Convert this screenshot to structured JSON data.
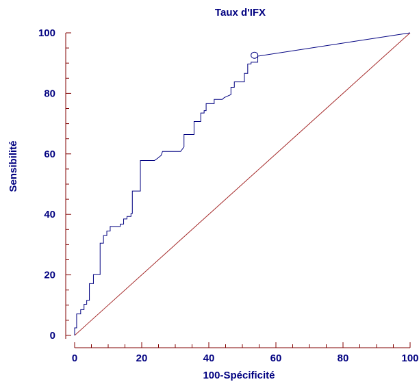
{
  "chart_data": {
    "type": "line",
    "title": "Taux d'IFX",
    "xlabel": "100-Spécificité",
    "ylabel": "Sensibilité",
    "xlim": [
      0,
      100
    ],
    "ylim": [
      0,
      100
    ],
    "x_ticks": [
      0,
      20,
      40,
      60,
      80,
      100
    ],
    "y_ticks": [
      0,
      20,
      40,
      60,
      80,
      100
    ],
    "grid": false,
    "colors": {
      "roc": "#000080",
      "reference": "#a52a2a",
      "axis": "#800000",
      "text": "#000080"
    },
    "series": [
      {
        "values": [
          [
            0,
            0
          ],
          [
            0,
            2.5
          ],
          [
            0.6,
            2.5
          ],
          [
            0.6,
            7.1
          ],
          [
            1.8,
            7.1
          ],
          [
            1.8,
            8.5
          ],
          [
            2.8,
            8.5
          ],
          [
            2.8,
            10.3
          ],
          [
            3.6,
            10.3
          ],
          [
            3.6,
            11.6
          ],
          [
            4.4,
            11.6
          ],
          [
            4.4,
            17.1
          ],
          [
            5.6,
            17.1
          ],
          [
            5.6,
            20.1
          ],
          [
            7.6,
            20.1
          ],
          [
            7.6,
            30.5
          ],
          [
            8.6,
            30.5
          ],
          [
            8.6,
            33.0
          ],
          [
            9.6,
            33.0
          ],
          [
            9.6,
            34.5
          ],
          [
            10.6,
            34.5
          ],
          [
            10.6,
            36.0
          ],
          [
            13.6,
            36.0
          ],
          [
            13.6,
            36.8
          ],
          [
            14.6,
            36.8
          ],
          [
            14.6,
            38.5
          ],
          [
            15.6,
            38.5
          ],
          [
            15.6,
            39.3
          ],
          [
            16.8,
            39.3
          ],
          [
            16.8,
            40.3
          ],
          [
            17.2,
            40.3
          ],
          [
            17.2,
            47.7
          ],
          [
            19.6,
            47.7
          ],
          [
            19.6,
            57.8
          ],
          [
            23.8,
            57.8
          ],
          [
            24.8,
            58.6
          ],
          [
            25.8,
            59.5
          ],
          [
            26.2,
            60.8
          ],
          [
            31.6,
            60.8
          ],
          [
            32.6,
            62.3
          ],
          [
            32.6,
            66.4
          ],
          [
            35.6,
            66.4
          ],
          [
            35.6,
            70.7
          ],
          [
            37.6,
            70.7
          ],
          [
            37.6,
            73.5
          ],
          [
            38.6,
            73.5
          ],
          [
            38.6,
            74.3
          ],
          [
            39.2,
            74.3
          ],
          [
            39.2,
            76.6
          ],
          [
            41.6,
            76.6
          ],
          [
            41.6,
            78.0
          ],
          [
            44.0,
            78.0
          ],
          [
            44.6,
            78.6
          ],
          [
            46.6,
            79.6
          ],
          [
            46.6,
            82.0
          ],
          [
            47.6,
            82.0
          ],
          [
            47.6,
            83.8
          ],
          [
            50.6,
            83.8
          ],
          [
            50.6,
            86.6
          ],
          [
            51.6,
            86.6
          ],
          [
            51.6,
            89.7
          ],
          [
            52.6,
            89.7
          ],
          [
            52.6,
            90.3
          ],
          [
            54.6,
            90.3
          ],
          [
            54.6,
            92.3
          ],
          [
            100,
            100
          ]
        ]
      },
      {
        "values": [
          [
            0,
            0
          ],
          [
            100,
            100
          ]
        ]
      }
    ],
    "annotations": [
      {
        "type": "criterion-marker",
        "x": 53.6,
        "y": 92.6
      }
    ]
  }
}
